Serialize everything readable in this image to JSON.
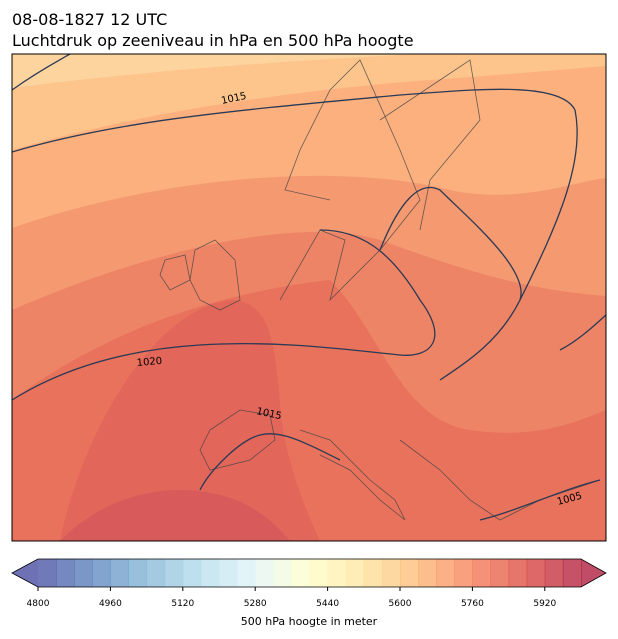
{
  "header": {
    "title_line1": "08-08-1827 12 UTC",
    "title_line2": "Luchtdruk op zeeniveau in hPa en 500 hPa hoogte"
  },
  "map": {
    "isobar_labels": [
      1015,
      1020,
      1015,
      1005
    ]
  },
  "colorbar": {
    "lim": [
      4800,
      6000
    ],
    "step": 40,
    "ticks": [
      4800,
      4960,
      5120,
      5280,
      5440,
      5600,
      5760,
      5920
    ],
    "label": "500 hPa hoogte in meter"
  }
}
